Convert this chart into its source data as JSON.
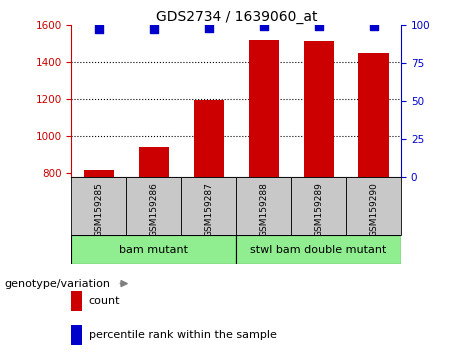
{
  "title": "GDS2734 / 1639060_at",
  "samples": [
    "GSM159285",
    "GSM159286",
    "GSM159287",
    "GSM159288",
    "GSM159289",
    "GSM159290"
  ],
  "counts": [
    820,
    940,
    1195,
    1520,
    1510,
    1450
  ],
  "percentile_ranks": [
    97,
    97,
    98,
    99,
    99,
    99
  ],
  "ylim_left": [
    780,
    1600
  ],
  "ylim_right": [
    0,
    100
  ],
  "yticks_left": [
    800,
    1000,
    1200,
    1400,
    1600
  ],
  "yticks_right": [
    0,
    25,
    50,
    75,
    100
  ],
  "groups": [
    {
      "label": "bam mutant",
      "samples_idx": [
        0,
        1,
        2
      ],
      "color": "#90EE90"
    },
    {
      "label": "stwl bam double mutant",
      "samples_idx": [
        3,
        4,
        5
      ],
      "color": "#90EE90"
    }
  ],
  "bar_color": "#CC0000",
  "dot_color": "#0000CC",
  "left_axis_color": "#CC0000",
  "right_axis_color": "#0000CC",
  "background_xtick": "#C8C8C8",
  "genotype_label": "genotype/variation",
  "legend_count": "count",
  "legend_pct": "percentile rank within the sample",
  "bar_width": 0.55
}
